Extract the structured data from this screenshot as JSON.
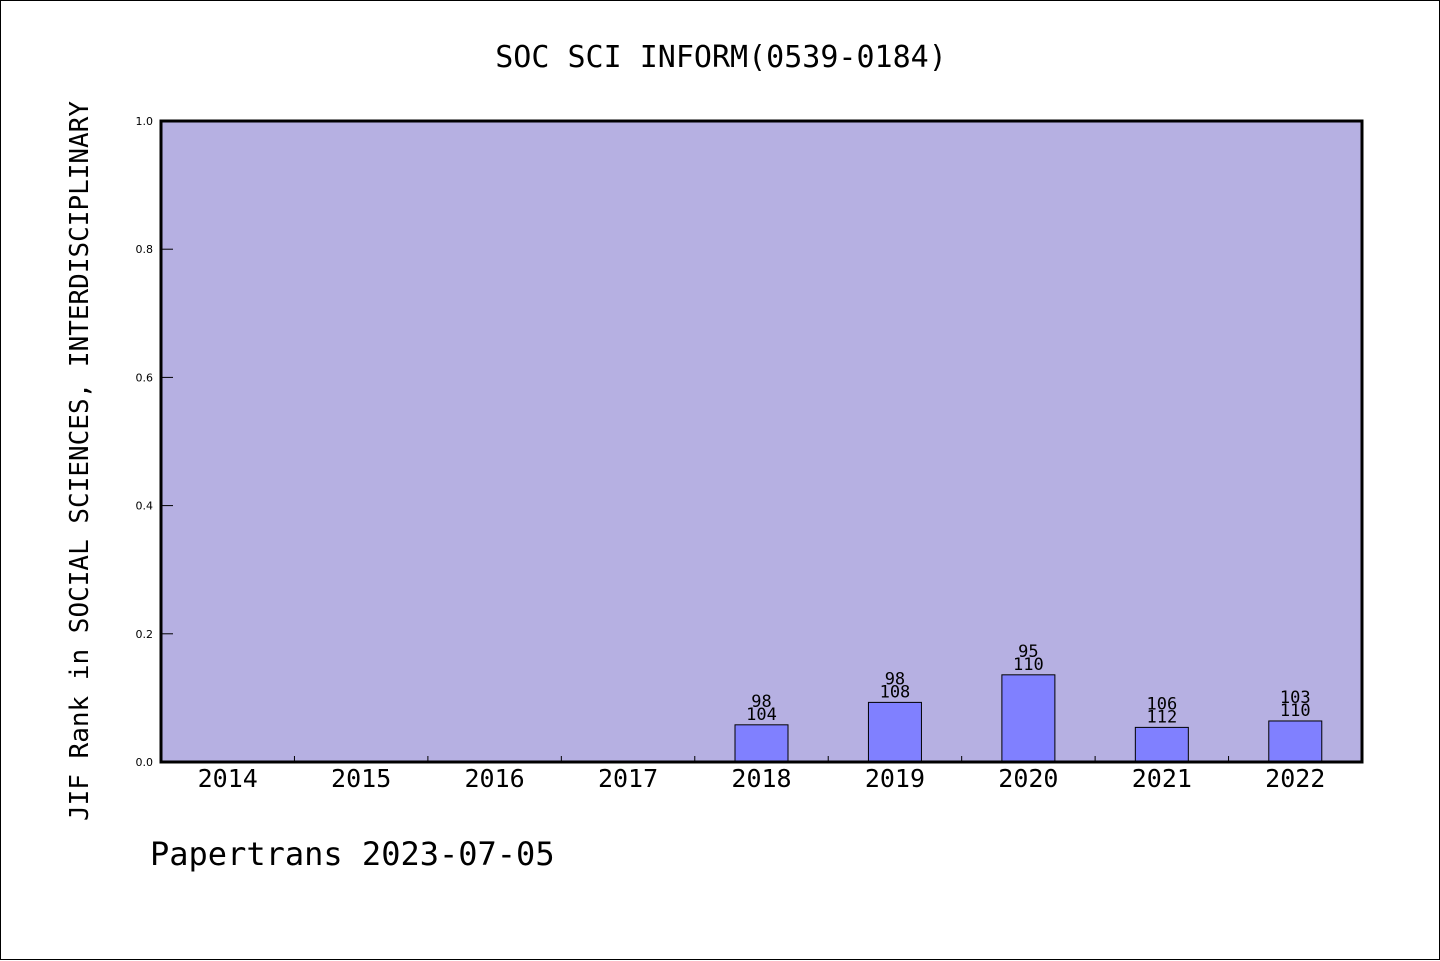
{
  "chart_data": {
    "type": "bar",
    "title": "SOC SCI INFORM(0539-0184)",
    "ylabel": "JIF Rank in SOCIAL SCIENCES, INTERDISCIPLINARY",
    "xlabel": "",
    "footer": "Papertrans 2023-07-05",
    "ylim": [
      0,
      1.0
    ],
    "yticks": [
      "0.0",
      "0.2",
      "0.4",
      "0.6",
      "0.8",
      "1.0"
    ],
    "categories": [
      "2014",
      "2015",
      "2016",
      "2017",
      "2018",
      "2019",
      "2020",
      "2021",
      "2022"
    ],
    "values": [
      null,
      null,
      null,
      null,
      0.058,
      0.093,
      0.136,
      0.054,
      0.064
    ],
    "rank_labels": [
      "",
      "",
      "",
      "",
      "98",
      "98",
      "95",
      "106",
      "103"
    ],
    "total_labels": [
      "",
      "",
      "",
      "",
      "104",
      "108",
      "110",
      "112",
      "110"
    ],
    "grid": false,
    "colors": {
      "plot_background": "#b6b0e2",
      "bar_fill": "#8080ff",
      "bar_stroke": "#000000",
      "axis": "#000000",
      "text": "#000000"
    }
  }
}
